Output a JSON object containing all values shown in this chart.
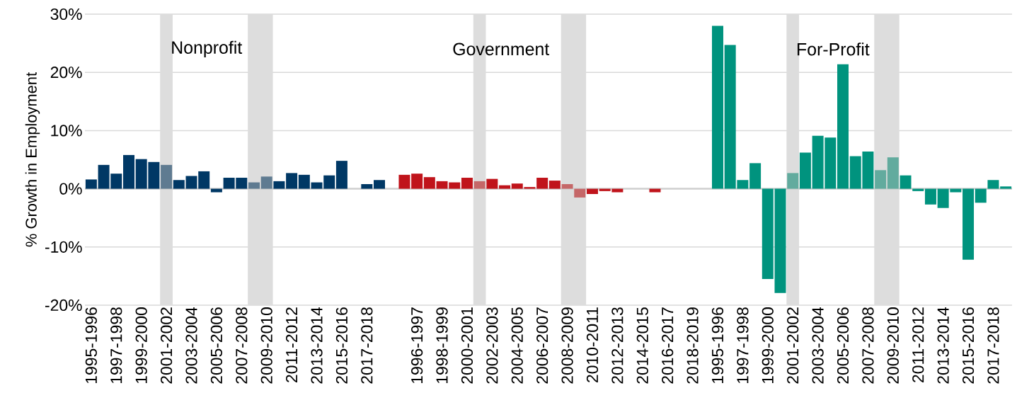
{
  "chart_data": {
    "type": "bar",
    "ylabel": "% Growth in Employment",
    "categories": [
      "1995-1996",
      null,
      "1997-1998",
      null,
      "1999-2000",
      null,
      "2001-2002",
      null,
      "2003-2004",
      null,
      "2005-2006",
      null,
      "2007-2008",
      null,
      "2009-2010",
      null,
      "2011-2012",
      null,
      "2013-2014",
      null,
      "2015-2016",
      null,
      "2017-2018",
      null,
      null,
      null,
      "1996-1997",
      null,
      "1998-1999",
      null,
      "2000-2001",
      null,
      "2002-2003",
      null,
      "2004-2005",
      null,
      "2006-2007",
      null,
      "2008-2009",
      null,
      "2010-2011",
      null,
      "2012-2013",
      null,
      "2014-2015",
      null,
      "2016-2017",
      null,
      "2018-2019",
      null,
      "1995-1996",
      null,
      "1997-1998",
      null,
      "1999-2000",
      null,
      "2001-2002",
      null,
      "2003-2004",
      null,
      "2005-2006",
      null,
      "2007-2008",
      null,
      "2009-2010",
      null,
      "2011-2012",
      null,
      "2013-2014",
      null,
      "2015-2016",
      null,
      "2017-2018",
      null
    ],
    "series": [
      {
        "values": [
          1.6,
          4.1,
          2.6,
          5.8,
          5.1,
          4.6,
          4.1,
          1.5,
          2.2,
          3.0,
          -0.6,
          1.9,
          1.9,
          1.1,
          2.1,
          1.3,
          2.7,
          2.4,
          1.1,
          2.3,
          4.8,
          null,
          0.8,
          1.5,
          null,
          null,
          null,
          null,
          null,
          null,
          null,
          null,
          null,
          null,
          null,
          null,
          null,
          null,
          null,
          null,
          null,
          null,
          null,
          null,
          null,
          null,
          null,
          null,
          null,
          null,
          null,
          null,
          null,
          null,
          null,
          null,
          null,
          null,
          null,
          null,
          null,
          null,
          null,
          null,
          null,
          null,
          null,
          null,
          null,
          null,
          null,
          null,
          null,
          null
        ],
        "colors": [
          "#003865",
          "#003865",
          "#003865",
          "#003865",
          "#003865",
          "#003865",
          "#5f7b91",
          "#003865",
          "#003865",
          "#003865",
          "#003865",
          "#003865",
          "#003865",
          "#5f7b91",
          "#5f7b91",
          "#003865",
          "#003865",
          "#003865",
          "#003865",
          "#003865",
          "#003865",
          null,
          "#003865",
          "#003865",
          null,
          null,
          null,
          null,
          null,
          null,
          null,
          null,
          null,
          null,
          null,
          null,
          null,
          null,
          null,
          null,
          null,
          null,
          null,
          null,
          null,
          null,
          null,
          null,
          null,
          null,
          null,
          null,
          null,
          null,
          null,
          null,
          null,
          null,
          null,
          null,
          null,
          null,
          null,
          null,
          null,
          null,
          null,
          null,
          null,
          null,
          null,
          null,
          null,
          null
        ]
      },
      {
        "values": [
          null,
          null,
          null,
          null,
          null,
          null,
          null,
          null,
          null,
          null,
          null,
          null,
          null,
          null,
          null,
          null,
          null,
          null,
          null,
          null,
          null,
          null,
          null,
          null,
          null,
          2.4,
          2.6,
          2.0,
          1.3,
          1.1,
          1.9,
          1.3,
          1.7,
          0.6,
          0.9,
          0.3,
          1.9,
          1.4,
          0.8,
          -1.5,
          -0.9,
          -0.4,
          -0.6,
          null,
          null,
          -0.6,
          null,
          null,
          null,
          null,
          null,
          null,
          null,
          null,
          null,
          null,
          null,
          null,
          null,
          null,
          null,
          null,
          null,
          null,
          null,
          null,
          null,
          null,
          null,
          null,
          null,
          null,
          null,
          null
        ],
        "colors": [
          null,
          null,
          null,
          null,
          null,
          null,
          null,
          null,
          null,
          null,
          null,
          null,
          null,
          null,
          null,
          null,
          null,
          null,
          null,
          null,
          null,
          null,
          null,
          null,
          null,
          "#c0141b",
          "#c0141b",
          "#c0141b",
          "#c0141b",
          "#c0141b",
          "#c0141b",
          "#c56768",
          "#c0141b",
          "#c0141b",
          "#c0141b",
          "#c0141b",
          "#c0141b",
          "#c0141b",
          "#c56768",
          "#c56768",
          "#c0141b",
          "#c0141b",
          "#c0141b",
          null,
          null,
          "#c0141b",
          null,
          null,
          null,
          null,
          null,
          null,
          null,
          null,
          null,
          null,
          null,
          null,
          null,
          null,
          null,
          null,
          null,
          null,
          null,
          null,
          null,
          null,
          null,
          null,
          null,
          null,
          null,
          null
        ]
      },
      {
        "values": [
          null,
          null,
          null,
          null,
          null,
          null,
          null,
          null,
          null,
          null,
          null,
          null,
          null,
          null,
          null,
          null,
          null,
          null,
          null,
          null,
          null,
          null,
          null,
          null,
          null,
          null,
          null,
          null,
          null,
          null,
          null,
          null,
          null,
          null,
          null,
          null,
          null,
          null,
          null,
          null,
          null,
          null,
          null,
          null,
          null,
          null,
          null,
          null,
          null,
          null,
          28.0,
          24.7,
          1.5,
          4.4,
          -15.5,
          -17.9,
          2.7,
          6.2,
          9.1,
          8.8,
          21.4,
          5.6,
          6.4,
          3.2,
          5.4,
          2.3,
          -0.4,
          -2.7,
          -3.3,
          -0.6,
          -12.2,
          -2.4,
          1.5,
          0.4
        ],
        "colors": [
          null,
          null,
          null,
          null,
          null,
          null,
          null,
          null,
          null,
          null,
          null,
          null,
          null,
          null,
          null,
          null,
          null,
          null,
          null,
          null,
          null,
          null,
          null,
          null,
          null,
          null,
          null,
          null,
          null,
          null,
          null,
          null,
          null,
          null,
          null,
          null,
          null,
          null,
          null,
          null,
          null,
          null,
          null,
          null,
          null,
          null,
          null,
          null,
          null,
          null,
          "#00937e",
          "#00937e",
          "#00937e",
          "#00937e",
          "#00937e",
          "#00937e",
          "#62ab9e",
          "#00937e",
          "#00937e",
          "#00937e",
          "#00937e",
          "#00937e",
          "#00937e",
          "#62ab9e",
          "#62ab9e",
          "#00937e",
          "#00937e",
          "#00937e",
          "#00937e",
          "#00937e",
          "#00937e",
          "#00937e",
          "#00937e",
          "#00937e"
        ]
      }
    ],
    "ylim": [
      -20,
      30
    ],
    "yticks": [
      {
        "value": -20,
        "label": "-20%"
      },
      {
        "value": -10,
        "label": "-10%"
      },
      {
        "value": 0,
        "label": "0%"
      },
      {
        "value": 10,
        "label": "10%"
      },
      {
        "value": 20,
        "label": "20%"
      },
      {
        "value": 30,
        "label": "30%"
      }
    ],
    "grid": "y",
    "annotations": [
      "Nonprofit",
      "Government",
      "For-Profit"
    ]
  }
}
